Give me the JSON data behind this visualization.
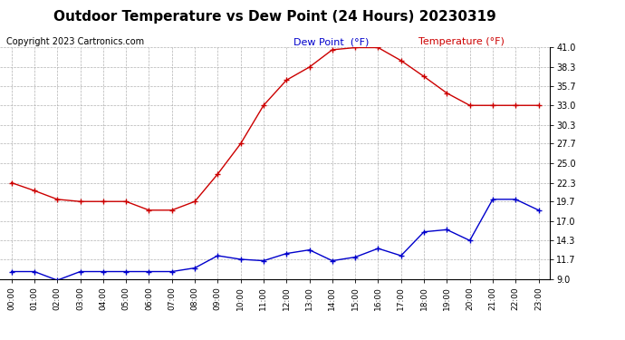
{
  "title": "Outdoor Temperature vs Dew Point (24 Hours) 20230319",
  "copyright": "Copyright 2023 Cartronics.com",
  "legend_dew": "Dew Point  (°F)",
  "legend_temp": "Temperature (°F)",
  "hours": [
    "00:00",
    "01:00",
    "02:00",
    "03:00",
    "04:00",
    "05:00",
    "06:00",
    "07:00",
    "08:00",
    "09:00",
    "10:00",
    "11:00",
    "12:00",
    "13:00",
    "14:00",
    "15:00",
    "16:00",
    "17:00",
    "18:00",
    "19:00",
    "20:00",
    "21:00",
    "22:00",
    "23:00"
  ],
  "temperature": [
    22.3,
    21.2,
    20.0,
    19.7,
    19.7,
    19.7,
    18.5,
    18.5,
    19.7,
    23.5,
    27.7,
    33.0,
    36.5,
    38.3,
    40.7,
    41.0,
    41.0,
    39.2,
    37.0,
    34.7,
    33.0,
    33.0,
    33.0,
    33.0
  ],
  "dew_point": [
    10.0,
    10.0,
    8.8,
    10.0,
    10.0,
    10.0,
    10.0,
    10.0,
    10.5,
    12.2,
    11.7,
    11.5,
    12.5,
    13.0,
    11.5,
    12.0,
    13.2,
    12.2,
    15.5,
    15.8,
    14.3,
    20.0,
    20.0,
    18.5
  ],
  "temp_color": "#cc0000",
  "dew_color": "#0000cc",
  "ylim_min": 9.0,
  "ylim_max": 41.0,
  "yticks": [
    9.0,
    11.7,
    14.3,
    17.0,
    19.7,
    22.3,
    25.0,
    27.7,
    30.3,
    33.0,
    35.7,
    38.3,
    41.0
  ],
  "bg_color": "#ffffff",
  "grid_color": "#aaaaaa",
  "title_fontsize": 11,
  "copyright_fontsize": 7,
  "legend_fontsize": 8
}
